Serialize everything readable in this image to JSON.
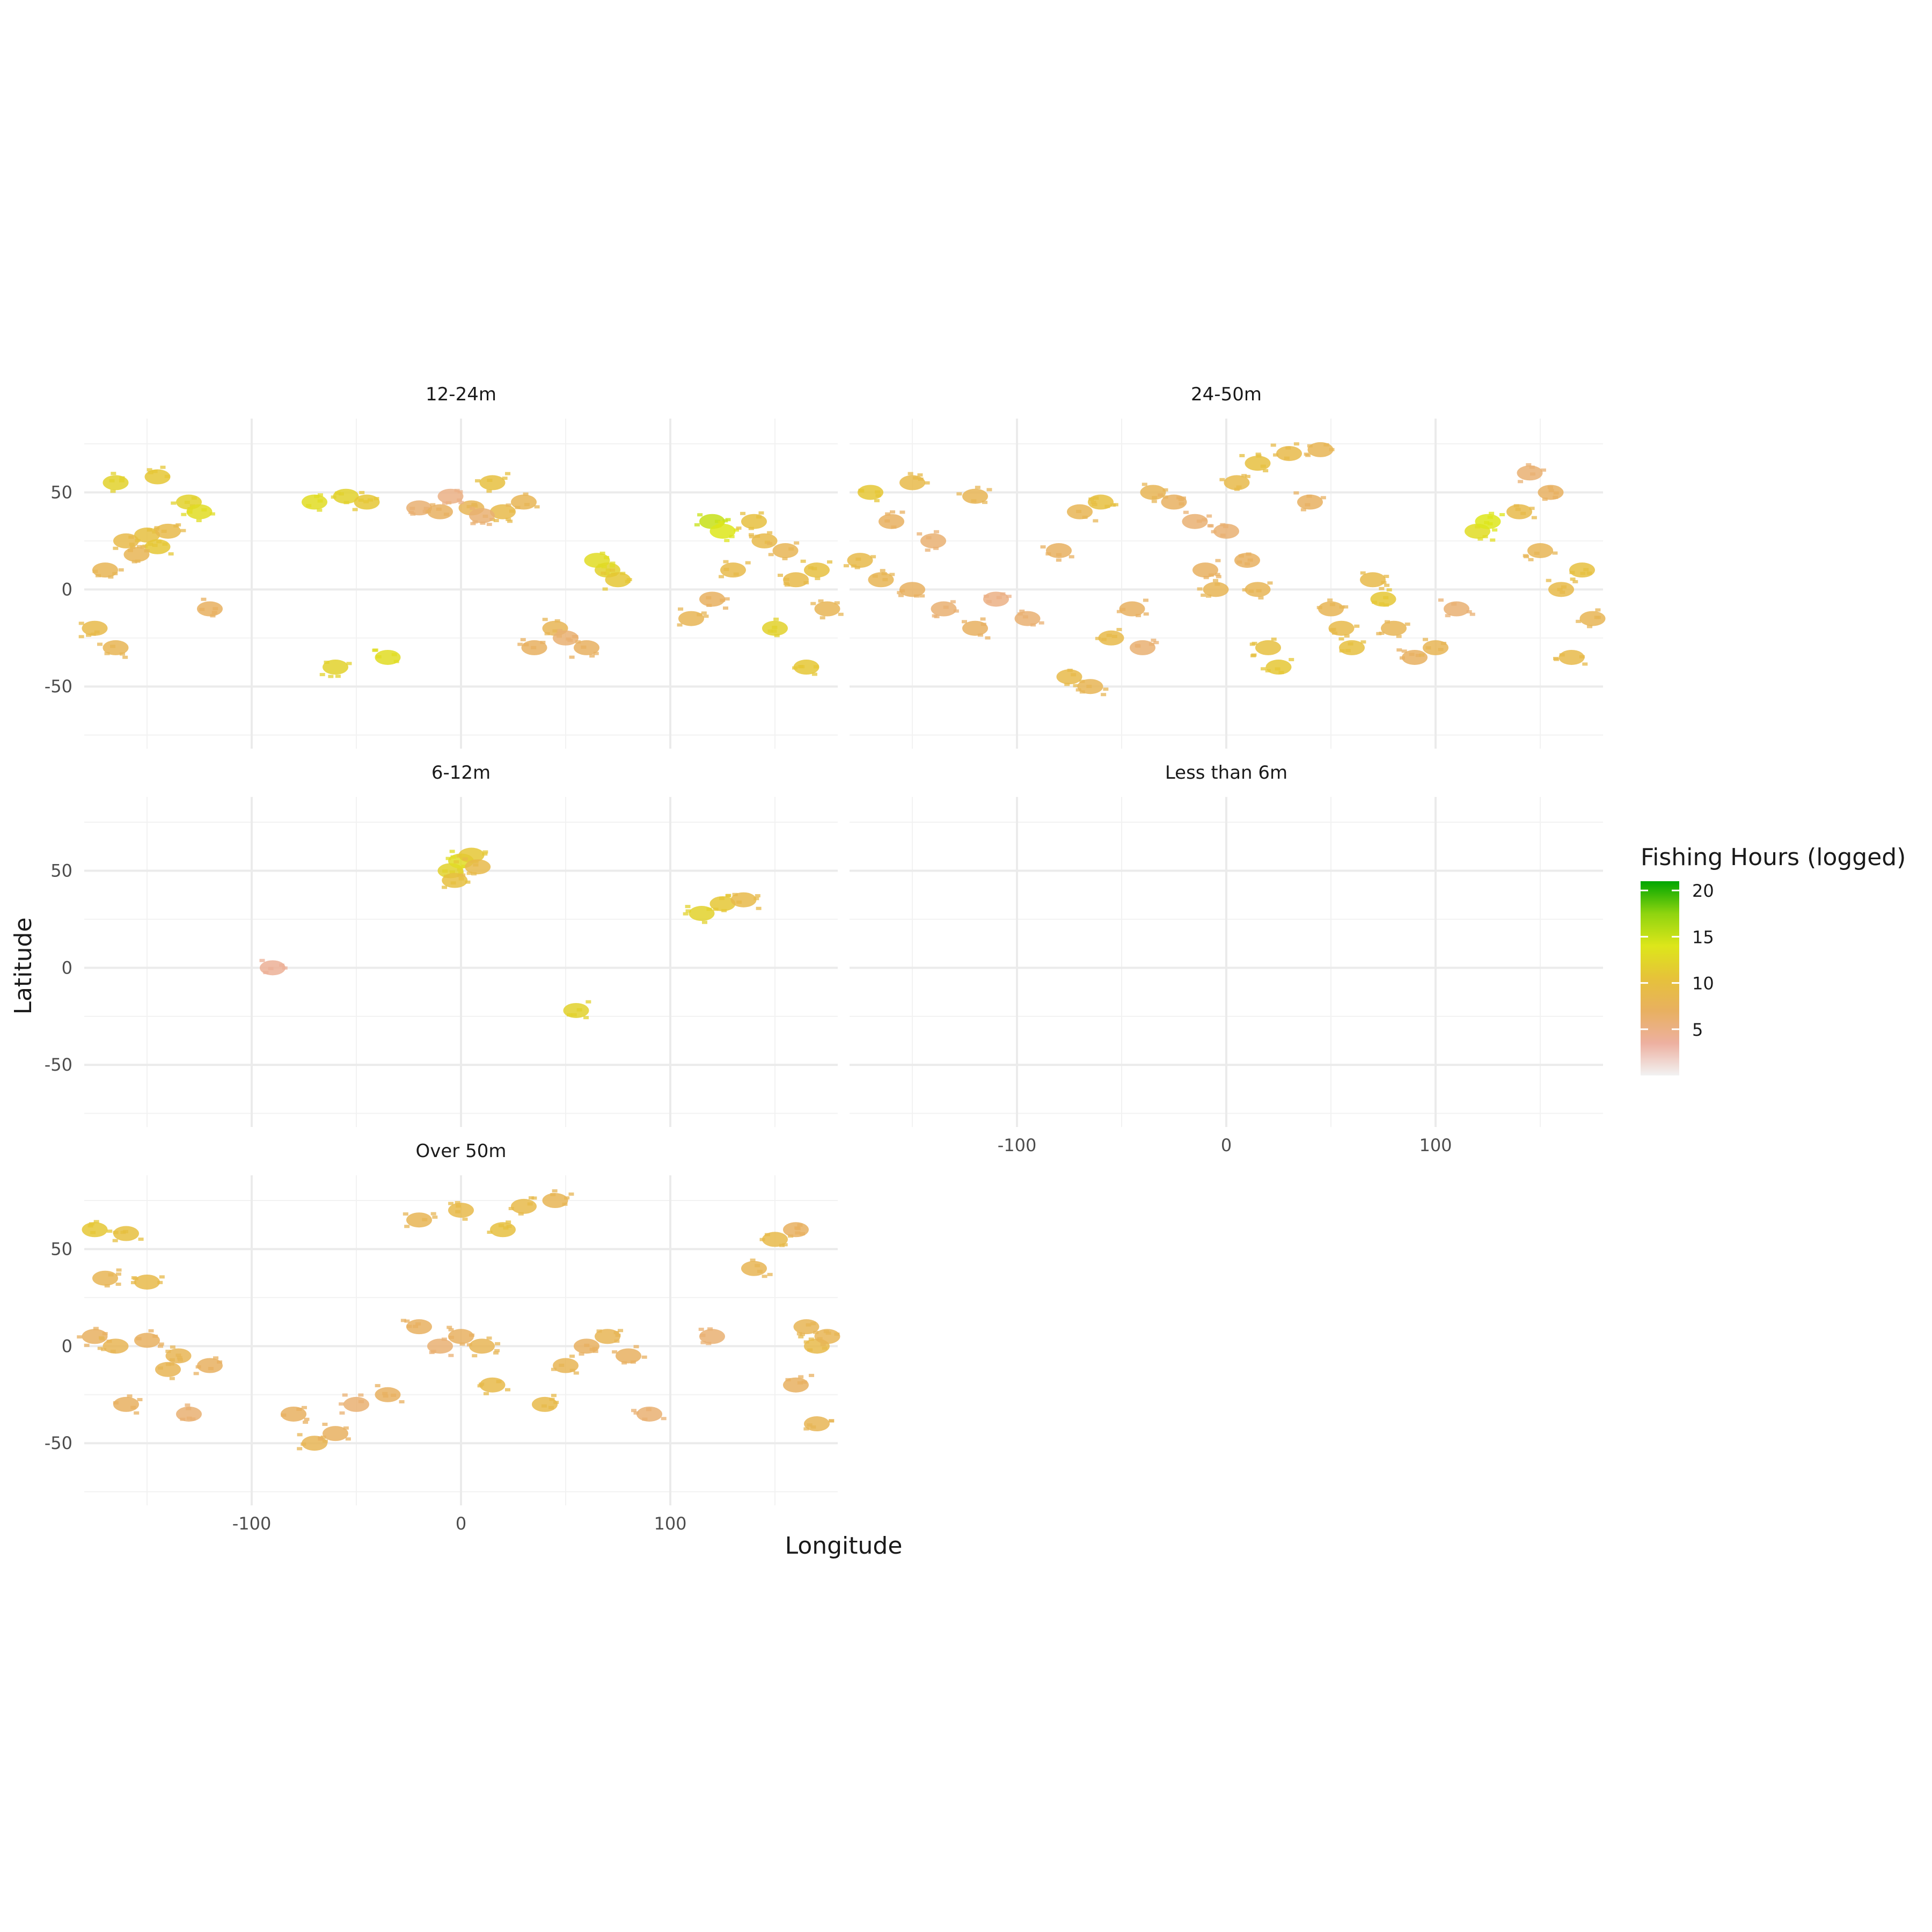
{
  "chart_data": {
    "type": "heatmap",
    "xlabel": "Longitude",
    "ylabel": "Latitude",
    "xlim": [
      -180,
      180
    ],
    "ylim": [
      -82,
      88
    ],
    "x_ticks": [
      -100,
      0,
      100
    ],
    "y_ticks": [
      50,
      0,
      -50
    ],
    "grid": true,
    "legend": {
      "title": "Fishing Hours (logged)",
      "position": "right",
      "range": [
        0,
        21
      ],
      "ticks": [
        5,
        10,
        15,
        20
      ],
      "colors": [
        "#f2f2f2",
        "#edb0a0",
        "#e8b060",
        "#e6c23a",
        "#dde61a",
        "#8fd40f",
        "#00a600"
      ]
    },
    "panels": [
      {
        "title": "12-24m",
        "points": [
          [
            -160,
            25,
            9
          ],
          [
            -150,
            28,
            10
          ],
          [
            -145,
            22,
            11
          ],
          [
            -140,
            30,
            9
          ],
          [
            -155,
            18,
            8
          ],
          [
            -165,
            55,
            12
          ],
          [
            -145,
            58,
            11
          ],
          [
            -130,
            45,
            12
          ],
          [
            -125,
            40,
            13
          ],
          [
            -170,
            10,
            8
          ],
          [
            -175,
            -20,
            9
          ],
          [
            -165,
            -30,
            8
          ],
          [
            -120,
            -10,
            7
          ],
          [
            -70,
            45,
            13
          ],
          [
            -55,
            48,
            12
          ],
          [
            -45,
            45,
            11
          ],
          [
            -35,
            -35,
            13
          ],
          [
            -60,
            -40,
            12
          ],
          [
            -20,
            42,
            6
          ],
          [
            -10,
            40,
            7
          ],
          [
            5,
            42,
            8
          ],
          [
            15,
            55,
            10
          ],
          [
            20,
            40,
            9
          ],
          [
            30,
            45,
            8
          ],
          [
            10,
            38,
            6
          ],
          [
            -5,
            48,
            5
          ],
          [
            35,
            -30,
            7
          ],
          [
            45,
            -20,
            8
          ],
          [
            50,
            -25,
            6
          ],
          [
            60,
            -30,
            7
          ],
          [
            70,
            10,
            12
          ],
          [
            75,
            5,
            11
          ],
          [
            65,
            15,
            13
          ],
          [
            120,
            35,
            15
          ],
          [
            125,
            30,
            14
          ],
          [
            140,
            35,
            10
          ],
          [
            145,
            25,
            9
          ],
          [
            155,
            20,
            8
          ],
          [
            160,
            5,
            9
          ],
          [
            170,
            10,
            10
          ],
          [
            175,
            -10,
            8
          ],
          [
            150,
            -20,
            12
          ],
          [
            165,
            -40,
            11
          ],
          [
            120,
            -5,
            7
          ],
          [
            130,
            10,
            9
          ],
          [
            110,
            -15,
            8
          ]
        ]
      },
      {
        "title": "24-50m",
        "points": [
          [
            -170,
            50,
            11
          ],
          [
            -150,
            55,
            9
          ],
          [
            -120,
            48,
            8
          ],
          [
            -160,
            35,
            7
          ],
          [
            -140,
            25,
            6
          ],
          [
            -175,
            15,
            9
          ],
          [
            -165,
            5,
            8
          ],
          [
            -150,
            0,
            7
          ],
          [
            -135,
            -10,
            6
          ],
          [
            -120,
            -20,
            7
          ],
          [
            -110,
            -5,
            5
          ],
          [
            -95,
            -15,
            6
          ],
          [
            -80,
            20,
            7
          ],
          [
            -70,
            40,
            8
          ],
          [
            -60,
            45,
            10
          ],
          [
            -75,
            -45,
            9
          ],
          [
            -65,
            -50,
            8
          ],
          [
            -55,
            -25,
            9
          ],
          [
            -45,
            -10,
            7
          ],
          [
            -40,
            -30,
            6
          ],
          [
            -35,
            50,
            8
          ],
          [
            -25,
            45,
            7
          ],
          [
            -15,
            35,
            6
          ],
          [
            -10,
            10,
            7
          ],
          [
            -5,
            0,
            8
          ],
          [
            0,
            30,
            6
          ],
          [
            10,
            15,
            7
          ],
          [
            15,
            0,
            8
          ],
          [
            20,
            -30,
            10
          ],
          [
            25,
            -40,
            11
          ],
          [
            5,
            55,
            9
          ],
          [
            15,
            65,
            10
          ],
          [
            30,
            70,
            9
          ],
          [
            45,
            72,
            8
          ],
          [
            40,
            45,
            7
          ],
          [
            50,
            -10,
            8
          ],
          [
            55,
            -20,
            9
          ],
          [
            60,
            -30,
            10
          ],
          [
            70,
            5,
            9
          ],
          [
            75,
            -5,
            11
          ],
          [
            80,
            -20,
            8
          ],
          [
            90,
            -35,
            7
          ],
          [
            100,
            -30,
            8
          ],
          [
            110,
            -10,
            6
          ],
          [
            120,
            30,
            13
          ],
          [
            125,
            35,
            14
          ],
          [
            140,
            40,
            9
          ],
          [
            150,
            20,
            8
          ],
          [
            160,
            0,
            9
          ],
          [
            170,
            10,
            10
          ],
          [
            175,
            -15,
            8
          ],
          [
            165,
            -35,
            9
          ],
          [
            155,
            50,
            7
          ],
          [
            145,
            60,
            6
          ]
        ]
      },
      {
        "title": "6-12m",
        "points": [
          [
            -5,
            50,
            12
          ],
          [
            0,
            55,
            13
          ],
          [
            5,
            58,
            11
          ],
          [
            -3,
            45,
            10
          ],
          [
            8,
            52,
            9
          ],
          [
            115,
            28,
            12
          ],
          [
            125,
            33,
            11
          ],
          [
            135,
            35,
            9
          ],
          [
            -90,
            0,
            4
          ],
          [
            55,
            -22,
            12
          ]
        ]
      },
      {
        "title": "Less than 6m",
        "points": []
      },
      {
        "title": "Over 50m",
        "points": [
          [
            -175,
            60,
            11
          ],
          [
            -160,
            58,
            10
          ],
          [
            -170,
            35,
            8
          ],
          [
            -150,
            33,
            9
          ],
          [
            -175,
            5,
            7
          ],
          [
            -165,
            0,
            8
          ],
          [
            -150,
            3,
            7
          ],
          [
            -135,
            -5,
            8
          ],
          [
            -120,
            -10,
            7
          ],
          [
            -140,
            -12,
            8
          ],
          [
            -160,
            -30,
            7
          ],
          [
            -130,
            -35,
            6
          ],
          [
            -80,
            -35,
            7
          ],
          [
            -70,
            -50,
            8
          ],
          [
            -60,
            -45,
            7
          ],
          [
            -50,
            -30,
            6
          ],
          [
            -35,
            -25,
            7
          ],
          [
            -20,
            10,
            7
          ],
          [
            -10,
            0,
            6
          ],
          [
            0,
            5,
            7
          ],
          [
            10,
            0,
            8
          ],
          [
            15,
            -20,
            9
          ],
          [
            20,
            60,
            10
          ],
          [
            0,
            70,
            9
          ],
          [
            -20,
            65,
            8
          ],
          [
            30,
            72,
            9
          ],
          [
            45,
            75,
            8
          ],
          [
            40,
            -30,
            9
          ],
          [
            50,
            -10,
            8
          ],
          [
            60,
            0,
            7
          ],
          [
            70,
            5,
            8
          ],
          [
            80,
            -5,
            7
          ],
          [
            90,
            -35,
            6
          ],
          [
            150,
            55,
            9
          ],
          [
            140,
            40,
            8
          ],
          [
            160,
            60,
            7
          ],
          [
            165,
            10,
            8
          ],
          [
            170,
            0,
            9
          ],
          [
            175,
            5,
            8
          ],
          [
            160,
            -20,
            7
          ],
          [
            170,
            -40,
            8
          ],
          [
            120,
            5,
            6
          ]
        ]
      }
    ]
  }
}
